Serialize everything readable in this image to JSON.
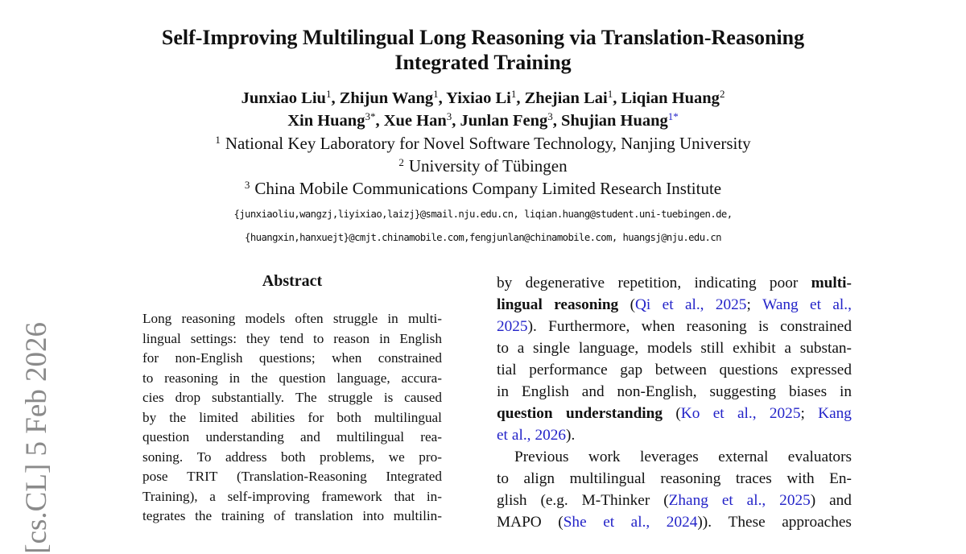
{
  "title": [
    "Self-Improving Multilingual Long Reasoning via Translation-Reasoning",
    "Integrated Training"
  ],
  "authors": [
    [
      {
        "name": "Junxiao Liu",
        "sup": "1"
      },
      {
        "name": "Zhijun Wang",
        "sup": "1"
      },
      {
        "name": "Yixiao Li",
        "sup": "1"
      },
      {
        "name": "Zhejian Lai",
        "sup": "1"
      },
      {
        "name": "Liqian Huang",
        "sup": "2"
      }
    ],
    [
      {
        "name": "Xin Huang",
        "sup": "3*"
      },
      {
        "name": "Xue Han",
        "sup": "3"
      },
      {
        "name": "Junlan Feng",
        "sup": "3"
      },
      {
        "name": "Shujian Huang",
        "sup": "1*",
        "blue": true
      }
    ]
  ],
  "affiliations": [
    {
      "sup": "1",
      "text": "National Key Laboratory for Novel Software Technology, Nanjing University"
    },
    {
      "sup": "2",
      "text": "University of Tübingen"
    },
    {
      "sup": "3",
      "text": "China Mobile Communications Company Limited Research Institute"
    }
  ],
  "emails": [
    "{junxiaoliu,wangzj,liyixiao,laizj}@smail.nju.edu.cn, liqian.huang@student.uni-tuebingen.de,",
    "{huangxin,hanxuejt}@cmjt.chinamobile.com,fengjunlan@chinamobile.com, huangsj@nju.edu.cn"
  ],
  "abstract_heading": "Abstract",
  "abstract_lines": [
    "Long reasoning models often struggle in multi-",
    "lingual settings: they tend to reason in English",
    "for non-English questions; when constrained",
    "to reasoning in the question language, accura-",
    "cies drop substantially. The struggle is caused",
    "by the limited abilities for both multilingual",
    "question understanding and multilingual rea-",
    "soning. To address both problems, we pro-",
    "pose TRIT (Translation-Reasoning Integrated",
    "Training), a self-improving framework that in-",
    "tegrates the training of translation into multilin-"
  ],
  "right_lines": [
    {
      "segs": [
        [
          "t",
          "by degenerative repetition, indicating poor "
        ],
        [
          "b",
          "multi-"
        ]
      ]
    },
    {
      "segs": [
        [
          "b",
          "lingual reasoning"
        ],
        [
          "t",
          " ("
        ],
        [
          "l",
          "Qi et al., 2025"
        ],
        [
          "t",
          "; "
        ],
        [
          "l",
          "Wang et al.,"
        ]
      ]
    },
    {
      "segs": [
        [
          "l",
          "2025"
        ],
        [
          "t",
          "). Furthermore, when reasoning is constrained"
        ]
      ]
    },
    {
      "segs": [
        [
          "t",
          "to a single language, models still exhibit a substan-"
        ]
      ]
    },
    {
      "segs": [
        [
          "t",
          "tial performance gap between questions expressed"
        ]
      ]
    },
    {
      "segs": [
        [
          "t",
          "in English and non-English, suggesting biases in"
        ]
      ]
    },
    {
      "segs": [
        [
          "b",
          "question understanding"
        ],
        [
          "t",
          " ("
        ],
        [
          "l",
          "Ko et al., 2025"
        ],
        [
          "t",
          "; "
        ],
        [
          "l",
          "Kang"
        ]
      ]
    },
    {
      "segs": [
        [
          "l",
          "et al., 2026"
        ],
        [
          "t",
          ")."
        ]
      ],
      "last": true
    },
    {
      "segs": [
        [
          "t",
          "Previous work leverages external evaluators"
        ]
      ],
      "indent": true
    },
    {
      "segs": [
        [
          "t",
          "to align multilingual reasoning traces with En-"
        ]
      ]
    },
    {
      "segs": [
        [
          "t",
          "glish (e.g. M-Thinker ("
        ],
        [
          "l",
          "Zhang et al., 2025"
        ],
        [
          "t",
          ") and"
        ]
      ]
    },
    {
      "segs": [
        [
          "t",
          "MAPO ("
        ],
        [
          "l",
          "She et al., 2024"
        ],
        [
          "t",
          "))."
        ],
        [
          "t",
          " These approaches"
        ]
      ]
    }
  ],
  "arxiv_stamp": "[cs.CL]  5 Feb 2026",
  "colors": {
    "link": "#2323c8",
    "stamp": "#8a8a8a"
  }
}
